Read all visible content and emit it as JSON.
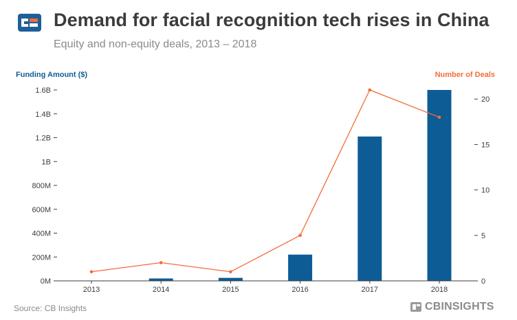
{
  "header": {
    "title": "Demand for facial recognition tech rises in China",
    "subtitle": "Equity and non-equity deals, 2013 – 2018"
  },
  "footer": {
    "source": "Source: CB Insights",
    "brand": "CBINSIGHTS"
  },
  "colors": {
    "bar": "#0e5c96",
    "line": "#f26b3a",
    "axis_left_label": "#0e5c96",
    "axis_right_label": "#f26b3a",
    "text": "#3b3b3b"
  },
  "chart_data": {
    "type": "bar",
    "title": "Demand for facial recognition tech rises in China",
    "categories": [
      "2013",
      "2014",
      "2015",
      "2016",
      "2017",
      "2018"
    ],
    "series": [
      {
        "name": "Funding Amount ($)",
        "type": "bar",
        "axis": "left",
        "unit": "M",
        "values": [
          0,
          20,
          25,
          220,
          1210,
          1600
        ]
      },
      {
        "name": "Number of Deals",
        "type": "line",
        "axis": "right",
        "values": [
          1,
          2,
          1,
          5,
          21,
          18
        ]
      }
    ],
    "ylabel_left": "Funding Amount ($)",
    "ylabel_right": "Number of Deals",
    "ylim_left": [
      0,
      1600
    ],
    "ylim_right": [
      0,
      21
    ],
    "yticks_left": [
      "0M",
      "200M",
      "400M",
      "600M",
      "800M",
      "1B",
      "1.2B",
      "1.4B",
      "1.6B"
    ],
    "yticks_right": [
      "0",
      "5",
      "10",
      "15",
      "20"
    ],
    "legend": "none"
  }
}
